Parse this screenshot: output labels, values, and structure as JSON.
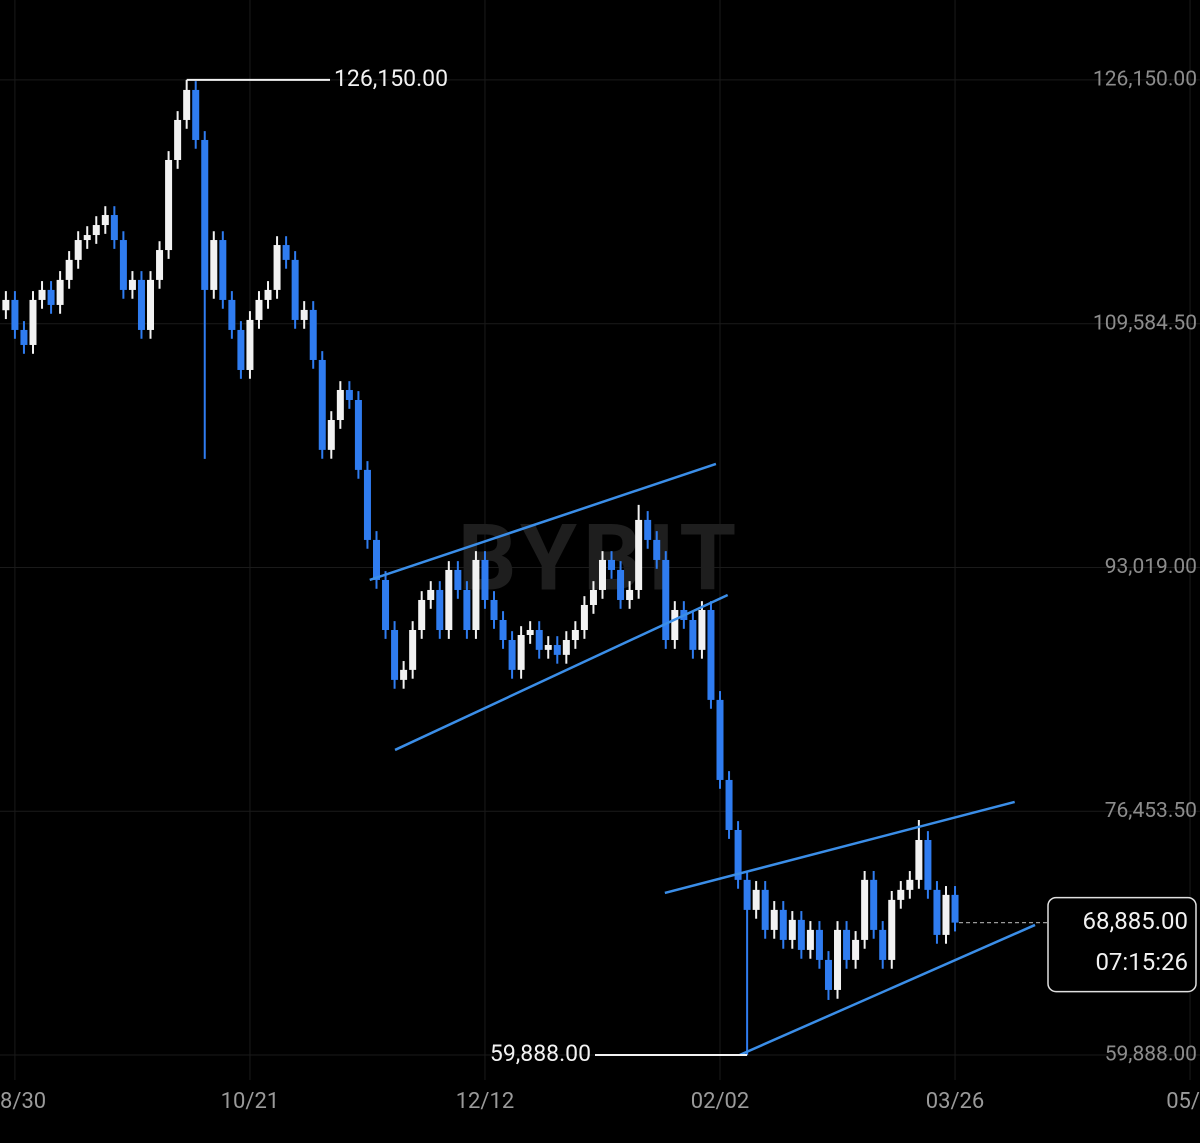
{
  "chart_data": {
    "type": "candlestick",
    "watermark": "BYBIT",
    "up_color": "#f2f2f2",
    "down_color": "#2f7cf0",
    "trendline_color": "#3b8ee8",
    "grid": true,
    "xlim": [
      -3.3,
      262.2
    ],
    "ylim": [
      58190,
      131582
    ],
    "xticks": [
      {
        "value": 0,
        "label": "8/30"
      },
      {
        "value": 52,
        "label": "10/21"
      },
      {
        "value": 104,
        "label": "12/12"
      },
      {
        "value": 156,
        "label": "02/02"
      },
      {
        "value": 208,
        "label": "03/26"
      },
      {
        "value": 260,
        "label": "05/"
      }
    ],
    "yticks": [
      {
        "value": 126150,
        "label": "126,150.00"
      },
      {
        "value": 109584.5,
        "label": "109,584.50"
      },
      {
        "value": 93019,
        "label": "93,019.00"
      },
      {
        "value": 76453.5,
        "label": "76,453.50"
      },
      {
        "value": 59888,
        "label": "59,888.00"
      }
    ],
    "x": [
      -2,
      0,
      2,
      4,
      6,
      8,
      10,
      12,
      14,
      16,
      18,
      20,
      22,
      24,
      26,
      28,
      30,
      32,
      34,
      36,
      38,
      40,
      42,
      44,
      46,
      48,
      50,
      52,
      54,
      56,
      58,
      60,
      62,
      64,
      66,
      68,
      70,
      72,
      74,
      76,
      78,
      80,
      82,
      84,
      86,
      88,
      90,
      92,
      94,
      96,
      98,
      100,
      102,
      104,
      106,
      108,
      110,
      112,
      114,
      116,
      118,
      120,
      122,
      124,
      126,
      128,
      130,
      132,
      134,
      136,
      138,
      140,
      142,
      144,
      146,
      148,
      150,
      152,
      154,
      156,
      158,
      160,
      162,
      164,
      166,
      168,
      170,
      172,
      174,
      176,
      178,
      180,
      182,
      184,
      186,
      188,
      190,
      192,
      194,
      196,
      198,
      200,
      202,
      204,
      206,
      208
    ],
    "open": [
      110500,
      111200,
      109160,
      108140,
      111200,
      111880,
      110860,
      112560,
      113920,
      115270,
      115610,
      116290,
      116970,
      115270,
      111880,
      112560,
      109160,
      112560,
      114590,
      120710,
      123430,
      125470,
      122070,
      111880,
      115270,
      111200,
      109160,
      106440,
      109840,
      111200,
      111880,
      114930,
      113920,
      109840,
      110520,
      107120,
      101010,
      103040,
      105080,
      104400,
      99650,
      94890,
      92170,
      88770,
      85380,
      86060,
      88770,
      90810,
      91490,
      88770,
      92850,
      91490,
      88770,
      93530,
      90810,
      89450,
      88090,
      86060,
      88430,
      88770,
      87420,
      87750,
      87080,
      88090,
      88770,
      90470,
      91490,
      93530,
      92850,
      90810,
      91490,
      96250,
      94890,
      93530,
      88090,
      90130,
      89450,
      87420,
      90130,
      84020,
      78580,
      75180,
      71790,
      69750,
      71110,
      68390,
      69750,
      67710,
      69070,
      67030,
      68390,
      66350,
      64310,
      68390,
      66350,
      67710,
      71790,
      68390,
      66350,
      70430,
      71110,
      71790,
      74500,
      71110,
      68050,
      70770
    ],
    "high": [
      111800,
      111800,
      109760,
      111800,
      112480,
      112480,
      113160,
      114520,
      115870,
      116210,
      116890,
      117570,
      117570,
      115870,
      113160,
      113160,
      113160,
      115190,
      121310,
      124030,
      126150,
      126070,
      122670,
      115870,
      115870,
      111800,
      109760,
      110440,
      111800,
      112480,
      115530,
      115530,
      114520,
      111120,
      111120,
      107720,
      103640,
      105680,
      105680,
      105000,
      100250,
      95490,
      92770,
      89370,
      86660,
      89370,
      91410,
      92090,
      92090,
      93450,
      93450,
      92090,
      94130,
      94130,
      91410,
      90050,
      88690,
      89030,
      89370,
      89370,
      88350,
      88350,
      88690,
      89370,
      91070,
      92090,
      94130,
      94130,
      93450,
      92090,
      97270,
      96850,
      95490,
      94130,
      90730,
      90730,
      90050,
      90730,
      90730,
      84620,
      79180,
      75780,
      72390,
      71710,
      71710,
      70350,
      70350,
      69670,
      69670,
      68990,
      68990,
      66950,
      68990,
      68990,
      68310,
      72390,
      72390,
      68990,
      71030,
      71710,
      72390,
      75860,
      75100,
      71710,
      71370,
      71370
    ],
    "low": [
      109900,
      108560,
      107540,
      107540,
      110600,
      110260,
      110260,
      111960,
      113320,
      114670,
      115010,
      115690,
      114670,
      111280,
      111280,
      108560,
      108560,
      111960,
      113990,
      120110,
      122830,
      121470,
      100400,
      111280,
      110600,
      108560,
      105840,
      105840,
      109240,
      110600,
      111280,
      113320,
      109240,
      109240,
      106520,
      100410,
      100410,
      102440,
      103800,
      99050,
      94290,
      91570,
      88170,
      84780,
      84780,
      85460,
      88170,
      90210,
      88170,
      88170,
      90890,
      88170,
      88170,
      90210,
      88850,
      87490,
      85460,
      85460,
      87830,
      86820,
      86820,
      86480,
      86480,
      87490,
      88170,
      89870,
      90890,
      92250,
      90210,
      90210,
      90890,
      94290,
      92930,
      87490,
      87490,
      88850,
      86820,
      86820,
      83420,
      77980,
      74580,
      71190,
      59888,
      69150,
      67790,
      67790,
      67110,
      67110,
      66430,
      66430,
      65750,
      63630,
      63710,
      65750,
      65750,
      67110,
      67790,
      65750,
      65750,
      69830,
      70510,
      71190,
      70510,
      67450,
      67450,
      68285
    ],
    "close": [
      111200,
      109160,
      108140,
      111200,
      111880,
      110860,
      112560,
      113920,
      115270,
      115610,
      116290,
      116970,
      115270,
      111880,
      112560,
      109160,
      112560,
      114590,
      120710,
      123430,
      125470,
      122070,
      111880,
      115270,
      111200,
      109160,
      106440,
      109840,
      111200,
      111880,
      114930,
      113920,
      109840,
      110520,
      107120,
      101010,
      103040,
      105080,
      104400,
      99650,
      94890,
      92170,
      88770,
      85380,
      86060,
      88770,
      90810,
      91490,
      88770,
      92850,
      91490,
      88770,
      93530,
      90810,
      89450,
      88090,
      86060,
      88430,
      88770,
      87420,
      87750,
      87080,
      88090,
      88770,
      90470,
      91490,
      93530,
      92850,
      90810,
      91490,
      96250,
      94890,
      93530,
      88090,
      90130,
      89450,
      87420,
      90130,
      84020,
      78580,
      75180,
      71790,
      69750,
      71110,
      68390,
      69750,
      67710,
      69070,
      67030,
      68390,
      66350,
      64310,
      68390,
      66350,
      67710,
      71790,
      68390,
      66350,
      70430,
      71110,
      71790,
      74500,
      71110,
      68050,
      70770,
      68885
    ],
    "high_marker": {
      "value": 126150,
      "label": "126,150.00"
    },
    "low_marker": {
      "value": 59888,
      "label": "59,888.00"
    },
    "last_price": {
      "value": 68885,
      "label": "68,885.00"
    },
    "countdown": "07:15:26",
    "trendlines": [
      {
        "x": [
          78.5,
          155.1
        ],
        "y": [
          92171,
          100053
        ]
      },
      {
        "x": [
          84.1,
          157.7
        ],
        "y": [
          80620,
          91152
        ]
      },
      {
        "x": [
          143.8,
          221.2
        ],
        "y": [
          70901,
          77086
        ]
      },
      {
        "x": [
          160.4,
          225.7
        ],
        "y": [
          59895,
          68727
        ]
      }
    ]
  }
}
